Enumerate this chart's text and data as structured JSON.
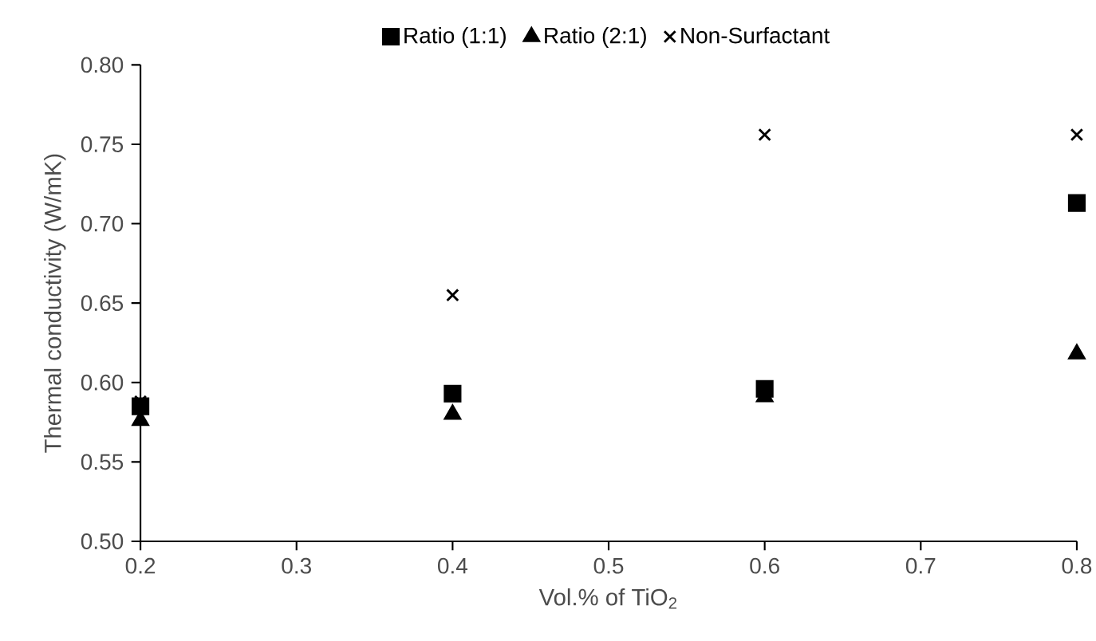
{
  "chart_data": {
    "type": "scatter",
    "xlabel": "Vol.% of TiO$_{2}$",
    "ylabel": "Thermal conductivity (W/mK)",
    "xlim": [
      0.2,
      0.8
    ],
    "xticks": [
      0.2,
      0.3,
      0.4,
      0.5,
      0.6,
      0.7,
      0.8
    ],
    "ylim": [
      0.5,
      0.8
    ],
    "yticks": [
      {
        "value": 0.5,
        "label": "0.50"
      },
      {
        "value": 0.55,
        "label": "0.55"
      },
      {
        "value": 0.6,
        "label": "0.60"
      },
      {
        "value": 0.65,
        "label": "0.65"
      },
      {
        "value": 0.7,
        "label": "0.70"
      },
      {
        "value": 0.75,
        "label": "0.75"
      },
      {
        "value": 0.8,
        "label": "0.80"
      }
    ],
    "grid": false,
    "legend": "top",
    "series": [
      {
        "name": "Ratio (1:1)",
        "color": "#000000",
        "marker": "square",
        "x": [
          0.2,
          0.4,
          0.6,
          0.8
        ],
        "values": [
          0.585,
          0.593,
          0.596,
          0.713
        ]
      },
      {
        "name": "Ratio (2:1)",
        "color": "#000000",
        "marker": "triangle",
        "x": [
          0.2,
          0.4,
          0.6,
          0.8
        ],
        "values": [
          0.576,
          0.58,
          0.591,
          0.618
        ]
      },
      {
        "name": "Non-Surfactant",
        "color": "#000000",
        "marker": "cross",
        "x": [
          0.2,
          0.4,
          0.6,
          0.8
        ],
        "values": [
          0.588,
          0.655,
          0.756,
          0.756
        ]
      }
    ]
  }
}
